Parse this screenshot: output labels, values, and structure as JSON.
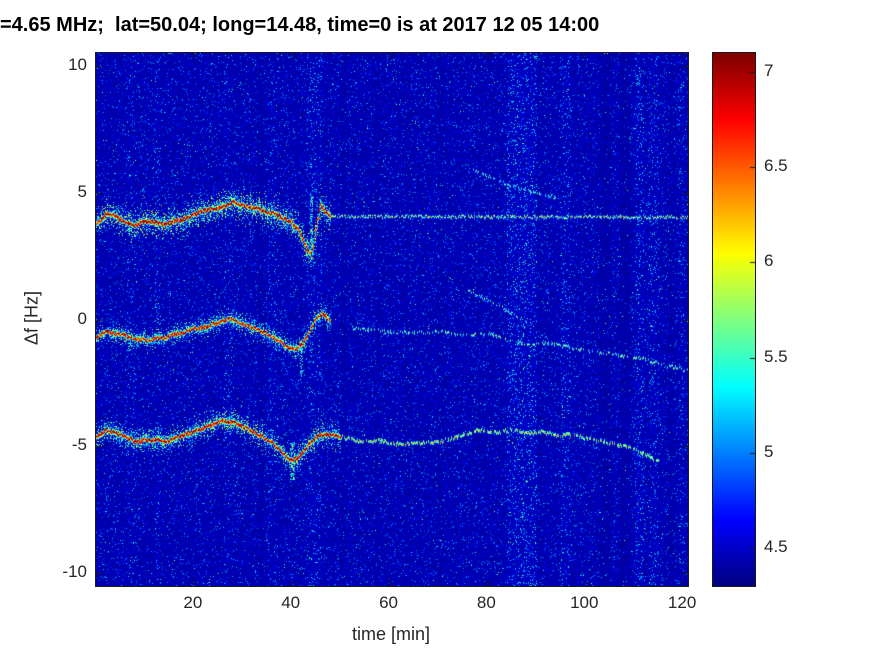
{
  "figure": {
    "background": "#ffffff"
  },
  "chart_data": {
    "type": "heatmap",
    "title": "=4.65 MHz;  lat=50.04; long=14.48, time=0 is at 2017 12 05 14:00",
    "xlabel": "time [min]",
    "ylabel": "Δf [Hz]",
    "xlim": [
      0,
      121
    ],
    "ylim": [
      -10.5,
      10.5
    ],
    "xticks": [
      20,
      40,
      60,
      80,
      100,
      120
    ],
    "yticks": [
      10,
      5,
      0,
      -5,
      -10
    ],
    "colormap": "jet",
    "colorbar": {
      "vmin": 4.3,
      "vmax": 7.1,
      "ticks": [
        7,
        6.5,
        6,
        5.5,
        5,
        4.5
      ]
    },
    "background_level": [
      4.33,
      4.55
    ],
    "stripes": [
      [
        6,
        8,
        0.3
      ],
      [
        12,
        13,
        0.4
      ],
      [
        26,
        28,
        0.3
      ],
      [
        33,
        34,
        -0.5
      ],
      [
        35,
        37,
        0.3
      ],
      [
        43,
        46,
        0.5
      ],
      [
        50,
        51,
        -0.4
      ],
      [
        57,
        58,
        -0.3
      ],
      [
        63,
        64,
        -0.3
      ],
      [
        70,
        71,
        -0.3
      ],
      [
        84,
        90,
        0.8
      ],
      [
        90,
        91,
        -0.3
      ],
      [
        95,
        97,
        0.5
      ],
      [
        103,
        105,
        -0.6
      ],
      [
        107,
        109,
        -0.6
      ],
      [
        110,
        112,
        0.7
      ],
      [
        113,
        115,
        0.5
      ],
      [
        117,
        118,
        -0.4
      ],
      [
        119,
        120,
        0.4
      ]
    ],
    "traces": [
      {
        "name": "upper-main",
        "peak": 7.2,
        "sigma": 1.5,
        "halo": 6.1,
        "haloSigma": 7,
        "density": 1,
        "points": [
          [
            0,
            3.8
          ],
          [
            2,
            4.2
          ],
          [
            4,
            4.1
          ],
          [
            6,
            3.8
          ],
          [
            8,
            3.7
          ],
          [
            10,
            3.9
          ],
          [
            12,
            3.85
          ],
          [
            14,
            3.75
          ],
          [
            16,
            3.9
          ],
          [
            18,
            4.0
          ],
          [
            20,
            4.15
          ],
          [
            22,
            4.3
          ],
          [
            24,
            4.35
          ],
          [
            26,
            4.45
          ],
          [
            28,
            4.65
          ],
          [
            30,
            4.5
          ],
          [
            32,
            4.45
          ],
          [
            34,
            4.3
          ],
          [
            36,
            4.2
          ],
          [
            38,
            4.0
          ],
          [
            40,
            3.85
          ],
          [
            41.5,
            3.5
          ],
          [
            43,
            2.8
          ],
          [
            44,
            2.6
          ],
          [
            45,
            3.6
          ],
          [
            45.8,
            4.5
          ],
          [
            46.5,
            4.3
          ],
          [
            48,
            4.1
          ]
        ]
      },
      {
        "name": "upper-faint-line",
        "peak": 5.9,
        "sigma": 0.7,
        "halo": 0,
        "haloSigma": 0,
        "density": 0.85,
        "points": [
          [
            48,
            4.08
          ],
          [
            121,
            4.05
          ]
        ]
      },
      {
        "name": "upper-right-streak",
        "peak": 5.6,
        "sigma": 0.8,
        "halo": 0,
        "haloSigma": 0,
        "density": 0.5,
        "points": [
          [
            77,
            5.9
          ],
          [
            82,
            5.5
          ],
          [
            86,
            5.2
          ],
          [
            90,
            5.0
          ],
          [
            94,
            4.8
          ]
        ]
      },
      {
        "name": "middle-main",
        "peak": 7.1,
        "sigma": 1.4,
        "halo": 5.9,
        "haloSigma": 5,
        "density": 1,
        "points": [
          [
            0,
            -0.7
          ],
          [
            2,
            -0.45
          ],
          [
            4,
            -0.55
          ],
          [
            6,
            -0.6
          ],
          [
            8,
            -0.75
          ],
          [
            10,
            -0.8
          ],
          [
            12,
            -0.75
          ],
          [
            14,
            -0.7
          ],
          [
            16,
            -0.55
          ],
          [
            18,
            -0.5
          ],
          [
            20,
            -0.35
          ],
          [
            22,
            -0.3
          ],
          [
            24,
            -0.15
          ],
          [
            26,
            -0.05
          ],
          [
            27.5,
            0.05
          ],
          [
            29,
            -0.1
          ],
          [
            31,
            -0.25
          ],
          [
            33,
            -0.4
          ],
          [
            35,
            -0.55
          ],
          [
            37,
            -0.8
          ],
          [
            39,
            -1.05
          ],
          [
            40.5,
            -1.15
          ],
          [
            42,
            -0.95
          ],
          [
            43.5,
            -0.5
          ],
          [
            45,
            0.1
          ],
          [
            46,
            0.25
          ],
          [
            47,
            0.1
          ],
          [
            48,
            -0.1
          ]
        ]
      },
      {
        "name": "middle-faint",
        "peak": 5.8,
        "sigma": 0.8,
        "halo": 0,
        "haloSigma": 0,
        "density": 0.45,
        "points": [
          [
            52,
            -0.3
          ],
          [
            58,
            -0.45
          ],
          [
            64,
            -0.5
          ],
          [
            70,
            -0.45
          ],
          [
            76,
            -0.6
          ],
          [
            80,
            -0.55
          ],
          [
            84,
            -0.75
          ],
          [
            88,
            -0.95
          ],
          [
            92,
            -0.9
          ],
          [
            96,
            -1.05
          ],
          [
            100,
            -1.2
          ],
          [
            104,
            -1.3
          ],
          [
            108,
            -1.45
          ],
          [
            112,
            -1.55
          ],
          [
            116,
            -1.8
          ],
          [
            121,
            -2.0
          ]
        ]
      },
      {
        "name": "middle-streak",
        "peak": 5.7,
        "sigma": 0.7,
        "halo": 0,
        "haloSigma": 0,
        "density": 0.5,
        "points": [
          [
            76,
            1.15
          ],
          [
            80,
            0.8
          ],
          [
            84,
            0.35
          ],
          [
            88,
            -0.1
          ]
        ]
      },
      {
        "name": "lower-main",
        "peak": 7.15,
        "sigma": 1.5,
        "halo": 6.0,
        "haloSigma": 6,
        "density": 1,
        "points": [
          [
            0,
            -4.6
          ],
          [
            2,
            -4.35
          ],
          [
            4,
            -4.45
          ],
          [
            6,
            -4.6
          ],
          [
            8,
            -4.8
          ],
          [
            10,
            -4.75
          ],
          [
            12,
            -4.7
          ],
          [
            14,
            -4.8
          ],
          [
            16,
            -4.65
          ],
          [
            18,
            -4.55
          ],
          [
            20,
            -4.4
          ],
          [
            22,
            -4.25
          ],
          [
            24,
            -4.1
          ],
          [
            26,
            -3.95
          ],
          [
            28,
            -4.05
          ],
          [
            30,
            -4.2
          ],
          [
            32,
            -4.4
          ],
          [
            34,
            -4.6
          ],
          [
            36,
            -4.85
          ],
          [
            38,
            -5.25
          ],
          [
            39.5,
            -5.55
          ],
          [
            41,
            -5.45
          ],
          [
            42.5,
            -5.15
          ],
          [
            44,
            -4.75
          ],
          [
            46,
            -4.5
          ],
          [
            48,
            -4.5
          ],
          [
            50,
            -4.6
          ]
        ]
      },
      {
        "name": "lower-faint",
        "peak": 6.3,
        "sigma": 0.9,
        "halo": 0,
        "haloSigma": 0,
        "density": 0.7,
        "points": [
          [
            50,
            -4.6
          ],
          [
            54,
            -4.8
          ],
          [
            58,
            -4.75
          ],
          [
            62,
            -4.9
          ],
          [
            66,
            -4.85
          ],
          [
            70,
            -4.8
          ],
          [
            74,
            -4.6
          ],
          [
            78,
            -4.35
          ],
          [
            82,
            -4.45
          ],
          [
            85,
            -4.3
          ],
          [
            88,
            -4.5
          ],
          [
            91,
            -4.4
          ],
          [
            94,
            -4.55
          ],
          [
            97,
            -4.5
          ],
          [
            100,
            -4.65
          ],
          [
            103,
            -4.75
          ],
          [
            106,
            -4.9
          ],
          [
            109,
            -5.0
          ],
          [
            112,
            -5.3
          ],
          [
            115,
            -5.6
          ]
        ]
      }
    ],
    "vstreaks": [
      {
        "t": 44.0,
        "f0": 2.3,
        "f1": 5.0,
        "peak": 5.9,
        "w": 3
      },
      {
        "t": 40.0,
        "f0": -6.3,
        "f1": -4.8,
        "peak": 6.0,
        "w": 4
      },
      {
        "t": 42.0,
        "f0": -2.2,
        "f1": -0.8,
        "peak": 5.8,
        "w": 3
      }
    ]
  }
}
